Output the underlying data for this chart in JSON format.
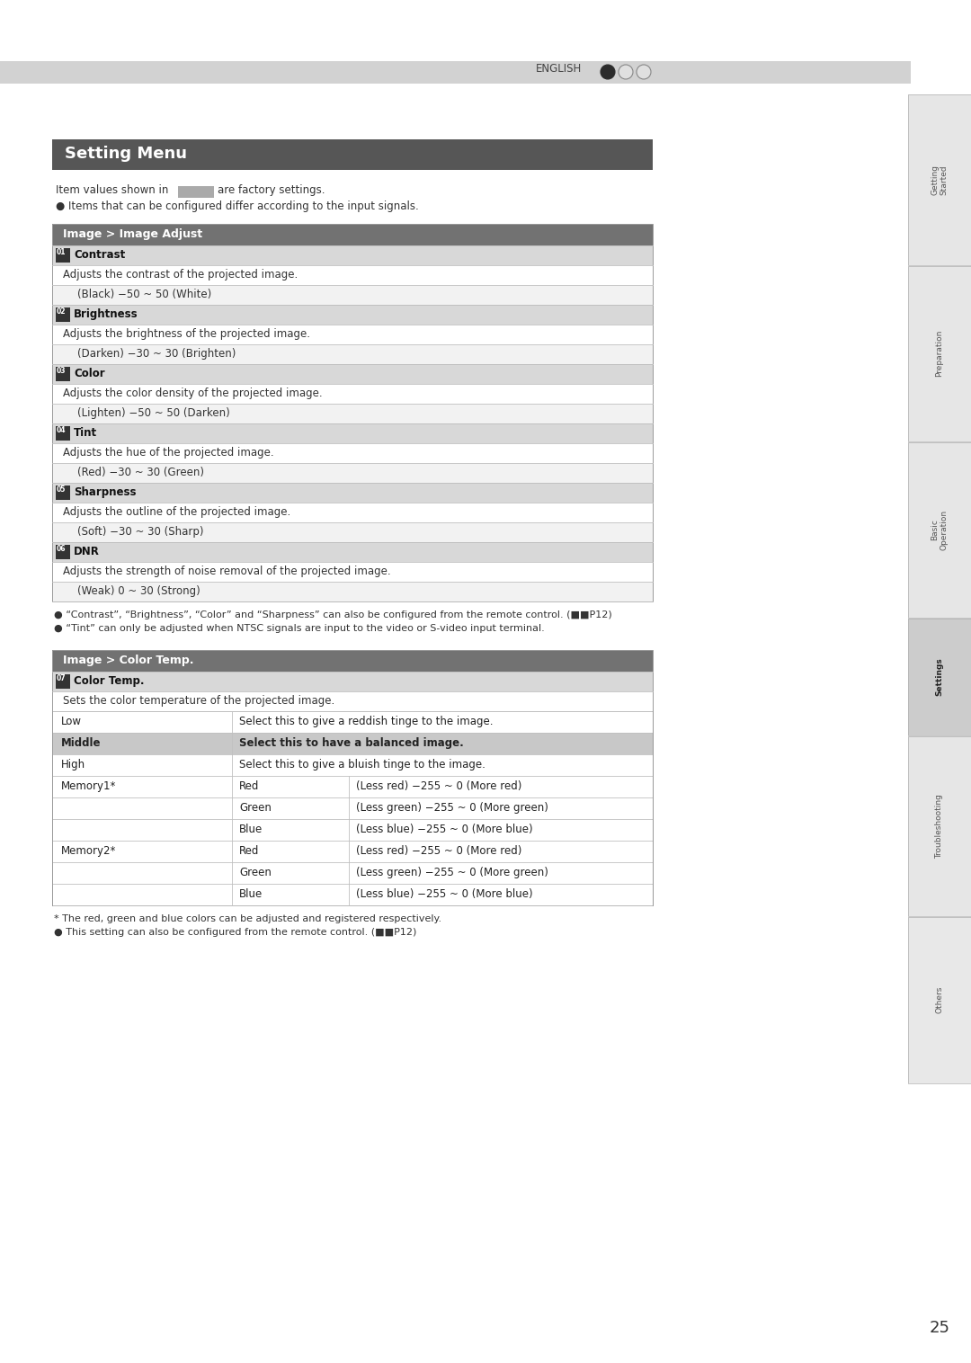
{
  "page_bg": "#ffffff",
  "header_bar_color": "#c8c8c8",
  "right_tabs": [
    "Getting\nStarted",
    "Preparation",
    "Basic\nOperation",
    "Settings",
    "Troubleshooting",
    "Others"
  ],
  "page_number": "25",
  "title_box_bg": "#565656",
  "title_box_text": "Setting Menu",
  "title_text_color": "#ffffff",
  "factory_note": "Item values shown in",
  "factory_note2": "are factory settings.",
  "bullet_note1": "● Items that can be configured differ according to the input signals.",
  "section_header_bg": "#727272",
  "item_header_bg": "#d8d8d8",
  "table_border_color": "#c0c0c0",
  "items": [
    {
      "num": "01",
      "name": "Contrast",
      "desc": "Adjusts the contrast of the projected image.",
      "range": "(Black) −50 ~ 50 (White)"
    },
    {
      "num": "02",
      "name": "Brightness",
      "desc": "Adjusts the brightness of the projected image.",
      "range": "(Darken) −30 ~ 30 (Brighten)"
    },
    {
      "num": "03",
      "name": "Color",
      "desc": "Adjusts the color density of the projected image.",
      "range": "(Lighten) −50 ~ 50 (Darken)"
    },
    {
      "num": "04",
      "name": "Tint",
      "desc": "Adjusts the hue of the projected image.",
      "range": "(Red) −30 ~ 30 (Green)"
    },
    {
      "num": "05",
      "name": "Sharpness",
      "desc": "Adjusts the outline of the projected image.",
      "range": "(Soft) −30 ~ 30 (Sharp)"
    },
    {
      "num": "06",
      "name": "DNR",
      "desc": "Adjusts the strength of noise removal of the projected image.",
      "range": "(Weak) 0 ~ 30 (Strong)"
    }
  ],
  "footnote1": "● “Contrast”, “Brightness”, “Color” and “Sharpness” can also be configured from the remote control. (■■P12)",
  "footnote2": "● “Tint” can only be adjusted when NTSC signals are input to the video or S-video input terminal.",
  "section2_header_text": "Image > Color Temp.",
  "section1_header_text": "Image > Image Adjust",
  "color_temp_item_num": "07",
  "color_temp_item_name": "Color Temp.",
  "color_temp_desc": "Sets the color temperature of the projected image.",
  "color_temp_rows": [
    {
      "col1": "Low",
      "col2": "",
      "col3": "Select this to give a reddish tinge to the image.",
      "highlight": false,
      "show_col1": true
    },
    {
      "col1": "Middle",
      "col2": "",
      "col3": "Select this to have a balanced image.",
      "highlight": true,
      "show_col1": true
    },
    {
      "col1": "High",
      "col2": "",
      "col3": "Select this to give a bluish tinge to the image.",
      "highlight": false,
      "show_col1": true
    },
    {
      "col1": "Memory1*",
      "col2": "Red",
      "col3": "(Less red) −255 ~ 0 (More red)",
      "highlight": false,
      "show_col1": true
    },
    {
      "col1": "Memory1*",
      "col2": "Green",
      "col3": "(Less green) −255 ~ 0 (More green)",
      "highlight": false,
      "show_col1": false
    },
    {
      "col1": "Memory1*",
      "col2": "Blue",
      "col3": "(Less blue) −255 ~ 0 (More blue)",
      "highlight": false,
      "show_col1": false
    },
    {
      "col1": "Memory2*",
      "col2": "Red",
      "col3": "(Less red) −255 ~ 0 (More red)",
      "highlight": false,
      "show_col1": true
    },
    {
      "col1": "Memory2*",
      "col2": "Green",
      "col3": "(Less green) −255 ~ 0 (More green)",
      "highlight": false,
      "show_col1": false
    },
    {
      "col1": "Memory2*",
      "col2": "Blue",
      "col3": "(Less blue) −255 ~ 0 (More blue)",
      "highlight": false,
      "show_col1": false
    }
  ],
  "color_temp_footnote1": "* The red, green and blue colors can be adjusted and registered respectively.",
  "color_temp_footnote2": "● This setting can also be configured from the remote control. (■■P12)"
}
